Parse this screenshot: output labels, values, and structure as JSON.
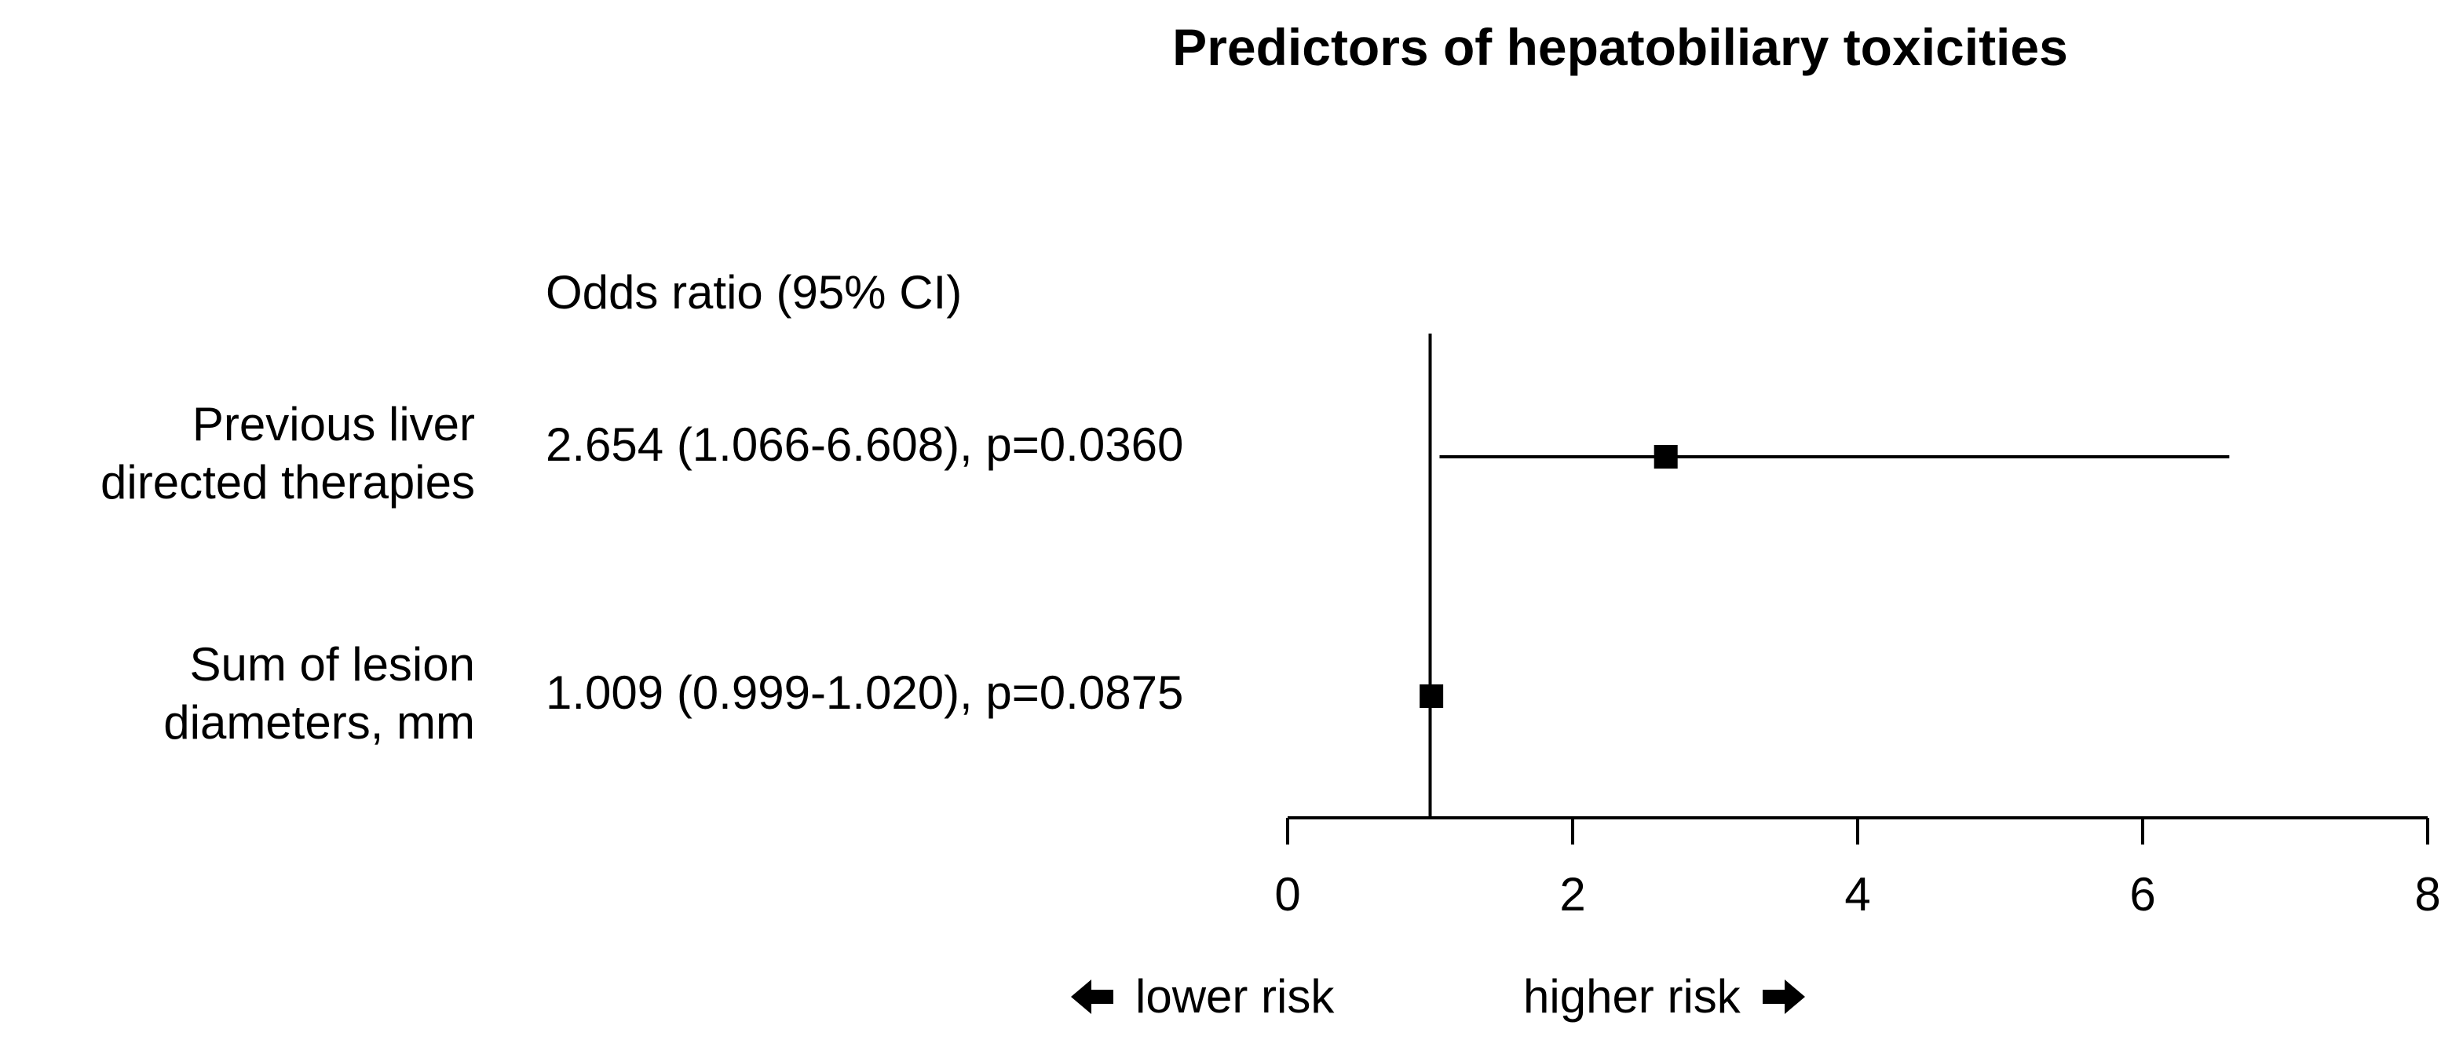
{
  "chart_data": {
    "type": "forest",
    "title": "Predictors of hepatobiliary toxicities",
    "column_header": "Odds ratio (95% CI)",
    "xlim": [
      0,
      8
    ],
    "xticks": [
      0,
      2,
      4,
      6,
      8
    ],
    "reference_line": 1,
    "rows": [
      {
        "label_lines": [
          "Previous liver",
          "directed therapies"
        ],
        "estimate_text": "2.654 (1.066-6.608), p=0.0360",
        "or": 2.654,
        "ci_low": 1.066,
        "ci_high": 6.608,
        "p": 0.036
      },
      {
        "label_lines": [
          "Sum of lesion",
          "diameters, mm"
        ],
        "estimate_text": "1.009 (0.999-1.020), p=0.0875",
        "or": 1.009,
        "ci_low": 0.999,
        "ci_high": 1.02,
        "p": 0.0875
      }
    ],
    "direction_labels": {
      "lower": "lower risk",
      "higher": "higher risk"
    }
  }
}
